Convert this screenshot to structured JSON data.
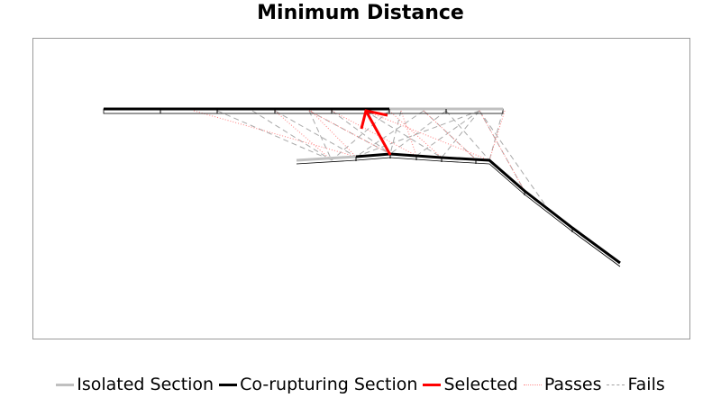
{
  "chart_data": {
    "type": "diagram",
    "title": "Minimum Distance",
    "legend": {
      "placement": "bottom",
      "items": [
        {
          "name": "Isolated Section",
          "style": "solid",
          "color": "#c0c0c0"
        },
        {
          "name": "Co-rupturing Section",
          "style": "solid",
          "color": "#000000"
        },
        {
          "name": "Selected",
          "style": "solid",
          "color": "#ff0000"
        },
        {
          "name": "Passes",
          "style": "dotted",
          "color": "#ff9090"
        },
        {
          "name": "Fails",
          "style": "dashed",
          "color": "#b0b0b0"
        }
      ]
    },
    "colors": {
      "isolated": "#c0c0c0",
      "corupturing": "#000000",
      "selected": "#ff0000",
      "passes": "#ff8080",
      "fails": "#a8a8a8"
    }
  }
}
